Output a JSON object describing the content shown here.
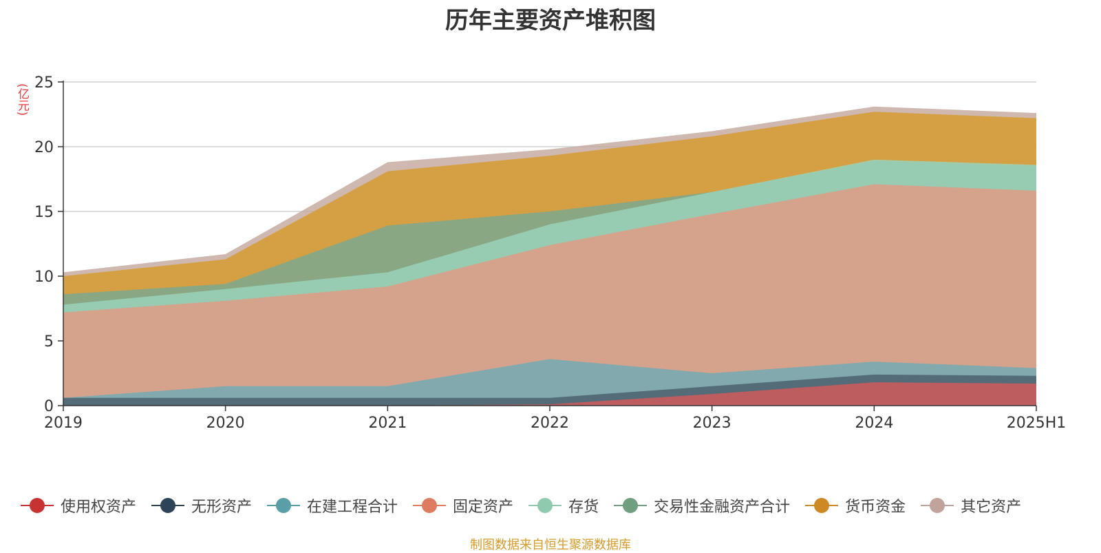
{
  "chart_data": {
    "type": "area",
    "title": "历年主要资产堆积图",
    "unit": "(亿元)",
    "x": [
      "2019",
      "2020",
      "2021",
      "2022",
      "2023",
      "2024",
      "2025H1"
    ],
    "yticks": [
      "0",
      "5",
      "10",
      "15",
      "20",
      "25"
    ],
    "ylim": [
      0,
      25
    ],
    "grid": true,
    "legend_position": "bottom",
    "stacked": false,
    "series": [
      {
        "name": "其它资产",
        "color": "#c4a89f",
        "values": [
          10.3,
          11.7,
          18.8,
          19.8,
          21.2,
          23.1,
          22.6
        ]
      },
      {
        "name": "货币资金",
        "color": "#d49b2b",
        "values": [
          10.0,
          11.3,
          18.1,
          19.3,
          20.8,
          22.7,
          22.2
        ]
      },
      {
        "name": "交易性金融资产合计",
        "color": "#7aa891",
        "values": [
          8.6,
          9.4,
          13.9,
          15.0,
          16.5,
          18.9,
          18.5
        ]
      },
      {
        "name": "存货",
        "color": "#9ad4bd",
        "values": [
          7.8,
          9.0,
          10.3,
          14.0,
          16.5,
          19.0,
          18.6
        ]
      },
      {
        "name": "固定资产",
        "color": "#e39a84",
        "values": [
          7.2,
          8.1,
          9.2,
          12.4,
          14.8,
          17.1,
          16.6
        ]
      },
      {
        "name": "在建工程合计",
        "color": "#6fabb5",
        "values": [
          0.6,
          1.5,
          1.5,
          3.6,
          2.5,
          3.4,
          2.9
        ]
      },
      {
        "name": "无形资产",
        "color": "#4b5d6c",
        "values": [
          0.6,
          0.6,
          0.6,
          0.6,
          1.5,
          2.4,
          2.3
        ]
      },
      {
        "name": "使用权资产",
        "color": "#d45a5a",
        "values": [
          0,
          0,
          0,
          0.1,
          0.9,
          1.8,
          1.7
        ]
      }
    ]
  },
  "legend": [
    {
      "name": "使用权资产",
      "color": "#c83232"
    },
    {
      "name": "无形资产",
      "color": "#2d4356"
    },
    {
      "name": "在建工程合计",
      "color": "#5a9ea8"
    },
    {
      "name": "固定资产",
      "color": "#de7c62"
    },
    {
      "name": "存货",
      "color": "#8fcaae"
    },
    {
      "name": "交易性金融资产合计",
      "color": "#6f9f7f"
    },
    {
      "name": "货币资金",
      "color": "#cd8a24"
    },
    {
      "name": "其它资产",
      "color": "#c0a39a"
    }
  ],
  "source_note": "制图数据来自恒生聚源数据库"
}
